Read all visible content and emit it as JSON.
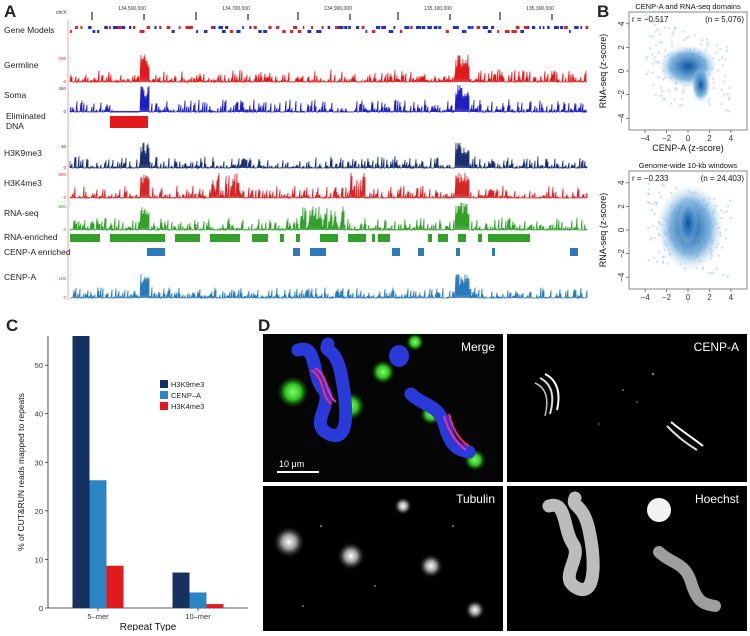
{
  "panels": {
    "a": {
      "letter": "A",
      "chrom": "chrX:",
      "ticks": [
        "134,500,000",
        "134,700,000",
        "134,900,000",
        "135,100,000",
        "135,300,000"
      ],
      "tracks": [
        {
          "label": "Gene Models",
          "kind": "genes",
          "scale": "",
          "color": "#d62728"
        },
        {
          "label": "Germline",
          "kind": "signal",
          "scale": "200",
          "color": "#e31a1c"
        },
        {
          "label": "Soma",
          "kind": "signal",
          "scale": "450",
          "color": "#1f1fbf"
        },
        {
          "label": "Eliminated DNA",
          "kind": "blocks",
          "scale": "",
          "color": "#e31a1c"
        },
        {
          "label": "H3K9me3",
          "kind": "signal",
          "scale": "40",
          "color": "#1a2f6e"
        },
        {
          "label": "H3K4me3",
          "kind": "signal",
          "scale": "300",
          "color": "#d62728"
        },
        {
          "label": "RNA-seq",
          "kind": "signal",
          "scale": "600",
          "color": "#33a02c"
        },
        {
          "label": "RNA-enriched",
          "kind": "blocks",
          "scale": "",
          "color": "#33a02c"
        },
        {
          "label": "CENP-A enriched",
          "kind": "blocks",
          "scale": "",
          "color": "#2b7bba"
        },
        {
          "label": "CENP-A",
          "kind": "signal",
          "scale": "100",
          "color": "#2b7bba"
        }
      ]
    },
    "b": {
      "letter": "B",
      "plots": [
        {
          "title": "CENP-A and RNA-seq domains",
          "r": "r = −0.517",
          "n": "(n = 5,076)",
          "xlabel": "CENP-A (z-score)",
          "ylabel": "RNA-seq (z-score)",
          "xticks": [
            "−4",
            "−2",
            "0",
            "2",
            "4"
          ],
          "yticks": [
            "4",
            "2",
            "0",
            "−2",
            "−4"
          ]
        },
        {
          "title": "Genome-wide 10-kb windows",
          "r": "r = −0.233",
          "n": "(n = 24,403)",
          "xlabel": "CENP-A (z-score)",
          "ylabel": "RNA-seq (z-score)",
          "xticks": [
            "−4",
            "−2",
            "0",
            "2",
            "4"
          ],
          "yticks": [
            "4",
            "2",
            "0",
            "−2",
            "−4"
          ]
        }
      ]
    },
    "c": {
      "letter": "C",
      "ylabel": "% of CUT&RUN reads mapped to repeats",
      "xlabel": "Repeat Type",
      "legend": [
        "H3K9me3",
        "CENP–A",
        "H3K4me3"
      ]
    },
    "d": {
      "letter": "D",
      "images": [
        {
          "label": "Merge",
          "scale_bar": "10 μm"
        },
        {
          "label": "CENP-A"
        },
        {
          "label": "Tubulin"
        },
        {
          "label": "Hoechst"
        }
      ]
    }
  },
  "chart_data": {
    "type": "bar",
    "categories": [
      "5–mer",
      "10–mer"
    ],
    "series": [
      {
        "name": "H3K9me3",
        "values": [
          56,
          7.3
        ],
        "color": "#16315f"
      },
      {
        "name": "CENP–A",
        "values": [
          26.3,
          3.2
        ],
        "color": "#2b86c6"
      },
      {
        "name": "H3K4me3",
        "values": [
          8.7,
          0.8
        ],
        "color": "#e31a1c"
      }
    ],
    "xlabel": "Repeat Type",
    "ylabel": "% of CUT&RUN reads mapped to repeats",
    "ylim": [
      0,
      56
    ],
    "yticks": [
      0,
      10,
      20,
      30,
      40,
      50
    ]
  }
}
